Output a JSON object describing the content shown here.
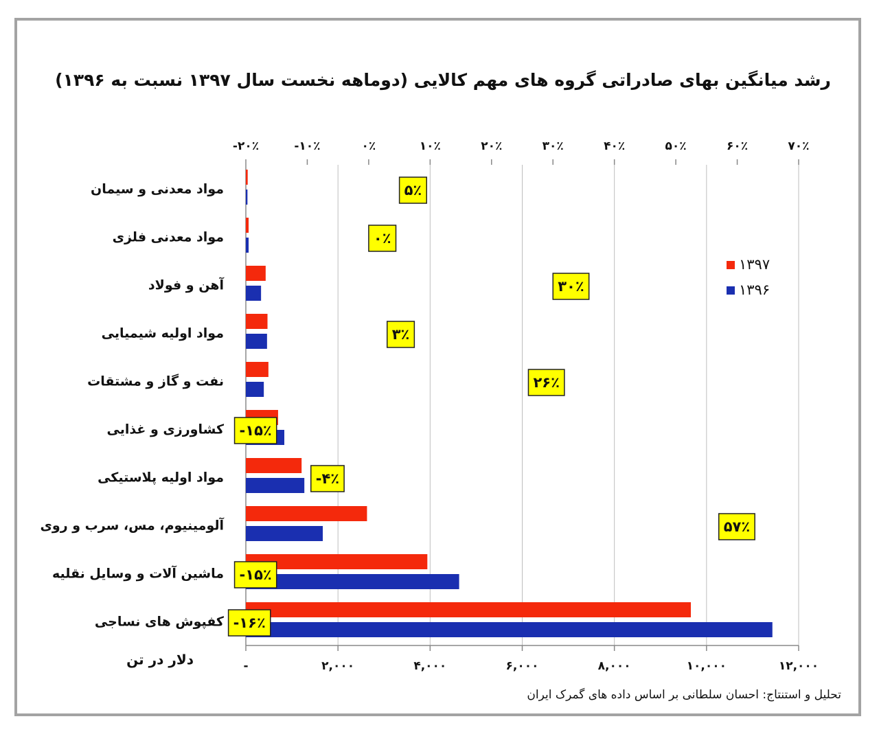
{
  "chart_data": {
    "type": "bar",
    "orientation": "horizontal",
    "title": "رشد میانگین بهای صادراتی گروه های مهم کالایی (دوماهه نخست سال ۱۳۹۷ نسبت به ۱۳۹۶)",
    "categories": [
      "مواد معدنی و سیمان",
      "مواد معدنی فلزی",
      "آهن و فولاد",
      "مواد اولیه شیمیایی",
      "نفت و گاز و مشتقات",
      "کشاورزی و غذایی",
      "مواد اولیه پلاستیکی",
      "آلومینیوم، مس، سرب و روی",
      "ماشین آلات و وسایل نقلیه",
      "کفپوش های نساجی"
    ],
    "series": [
      {
        "name": "۱۳۹۷",
        "color": "#f4290c",
        "values": [
          40,
          60,
          430,
          470,
          490,
          700,
          1210,
          2630,
          3940,
          9660
        ]
      },
      {
        "name": "۱۳۹۶",
        "color": "#1a2fb0",
        "values": [
          35,
          60,
          330,
          460,
          390,
          835,
          1270,
          1670,
          4630,
          11430
        ]
      }
    ],
    "xlim": [
      0,
      12000
    ],
    "xticks": [
      {
        "value": 0,
        "label": "-"
      },
      {
        "value": 2000,
        "label": "۲,۰۰۰"
      },
      {
        "value": 4000,
        "label": "۴,۰۰۰"
      },
      {
        "value": 6000,
        "label": "۶,۰۰۰"
      },
      {
        "value": 8000,
        "label": "۸,۰۰۰"
      },
      {
        "value": 10000,
        "label": "۱۰,۰۰۰"
      },
      {
        "value": 12000,
        "label": "۱۲,۰۰۰"
      }
    ],
    "x_label": "دلار در تن",
    "growth": {
      "values": [
        5,
        0,
        30,
        3,
        26,
        -15,
        -4,
        57,
        -15,
        -16
      ],
      "value_labels": [
        "۵٪",
        "۰٪",
        "۳۰٪",
        "۳٪",
        "۲۶٪",
        "-۱۵٪",
        "-۴٪",
        "۵۷٪",
        "-۱۵٪",
        "-۱۶٪"
      ],
      "color": "#ffff00"
    },
    "x2lim": [
      -20,
      70
    ],
    "x2ticks": [
      {
        "value": -20,
        "label": "-۲۰٪"
      },
      {
        "value": -10,
        "label": "-۱۰٪"
      },
      {
        "value": 0,
        "label": "۰٪"
      },
      {
        "value": 10,
        "label": "۱۰٪"
      },
      {
        "value": 20,
        "label": "۲۰٪"
      },
      {
        "value": 30,
        "label": "۳۰٪"
      },
      {
        "value": 40,
        "label": "۴۰٪"
      },
      {
        "value": 50,
        "label": "۵۰٪"
      },
      {
        "value": 60,
        "label": "۶۰٪"
      },
      {
        "value": 70,
        "label": "۷۰٪"
      }
    ],
    "grid": true,
    "legend": "right",
    "source": "تحلیل و استنتاج: احسان سلطانی بر اساس داده های گمرک ایران"
  }
}
